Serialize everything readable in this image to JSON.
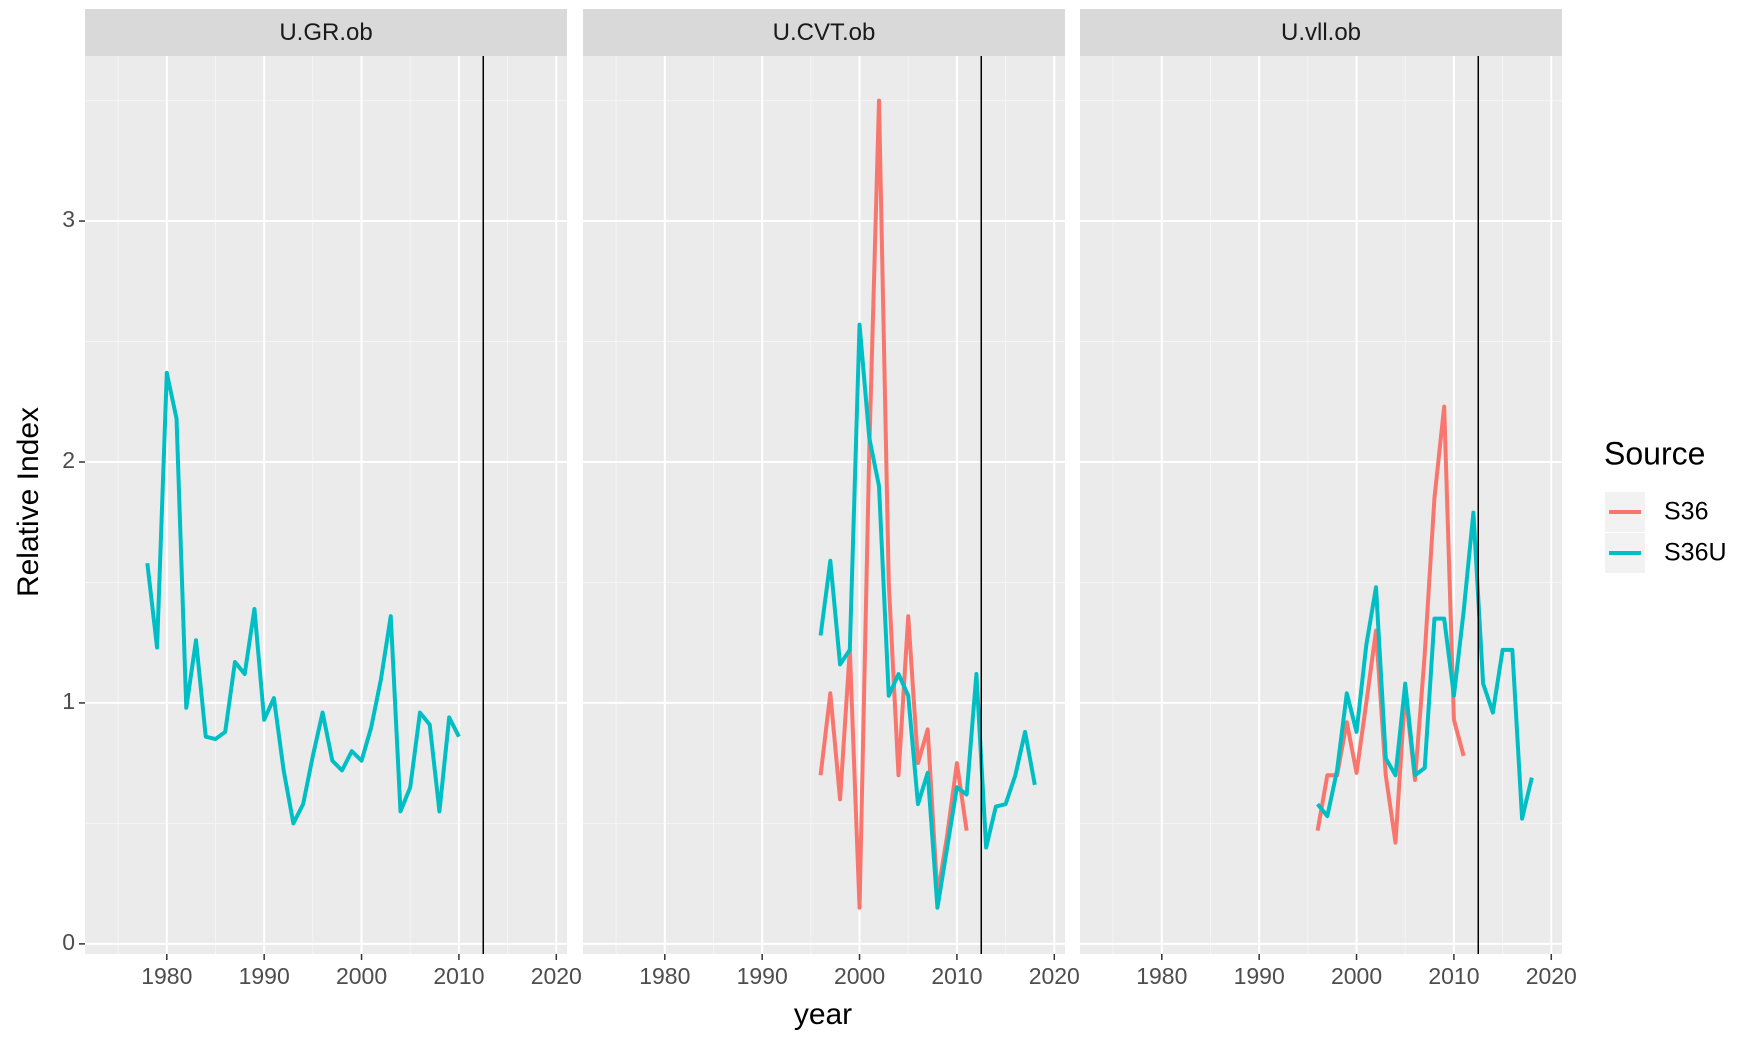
{
  "x_label": "year",
  "y_label": "Relative Index",
  "legend_title": "Source",
  "grid": true,
  "chart_data": [
    {
      "type": "line",
      "title": "U.GR.ob",
      "xlim": [
        1971.6,
        2021.1
      ],
      "ylim": [
        -0.042,
        3.685
      ],
      "xticks": [
        1980,
        1990,
        2000,
        2010,
        2020
      ],
      "yticks": [
        0,
        1,
        2,
        3
      ],
      "vline": 2012.5,
      "series": [
        {
          "name": "S36U",
          "color": "#00BFC4",
          "x": [
            1978,
            1979,
            1980,
            1981,
            1982,
            1983,
            1984,
            1985,
            1986,
            1987,
            1988,
            1989,
            1990,
            1991,
            1992,
            1993,
            1994,
            1995,
            1996,
            1997,
            1998,
            1999,
            2000,
            2001,
            2002,
            2003,
            2004,
            2005,
            2006,
            2007,
            2008,
            2009,
            2010
          ],
          "values": [
            1.58,
            1.23,
            2.37,
            2.18,
            0.98,
            1.26,
            0.86,
            0.85,
            0.88,
            1.17,
            1.12,
            1.39,
            0.93,
            1.02,
            0.72,
            0.5,
            0.58,
            0.78,
            0.96,
            0.76,
            0.72,
            0.8,
            0.76,
            0.9,
            1.1,
            1.36,
            0.55,
            0.65,
            0.96,
            0.91,
            0.55,
            0.94,
            0.86
          ]
        }
      ]
    },
    {
      "type": "line",
      "title": "U.CVT.ob",
      "xlim": [
        1971.6,
        2021.1
      ],
      "ylim": [
        -0.042,
        3.685
      ],
      "xticks": [
        1980,
        1990,
        2000,
        2010,
        2020
      ],
      "yticks": [
        0,
        1,
        2,
        3
      ],
      "vline": 2012.5,
      "series": [
        {
          "name": "S36",
          "color": "#F8766D",
          "x": [
            1996,
            1997,
            1998,
            1999,
            2000,
            2001,
            2002,
            2003,
            2004,
            2005,
            2006,
            2007,
            2008,
            2009,
            2010,
            2011
          ],
          "values": [
            0.7,
            1.04,
            0.6,
            1.22,
            0.15,
            2.05,
            3.5,
            1.5,
            0.7,
            1.36,
            0.75,
            0.89,
            0.2,
            0.45,
            0.75,
            0.47
          ]
        },
        {
          "name": "S36U",
          "color": "#00BFC4",
          "x": [
            1996,
            1997,
            1998,
            1999,
            2000,
            2001,
            2002,
            2003,
            2004,
            2005,
            2006,
            2007,
            2008,
            2009,
            2010,
            2011,
            2012,
            2013,
            2014,
            2015,
            2016,
            2017,
            2018
          ],
          "values": [
            1.28,
            1.59,
            1.16,
            1.22,
            2.57,
            2.1,
            1.9,
            1.03,
            1.12,
            1.03,
            0.58,
            0.71,
            0.15,
            0.4,
            0.65,
            0.62,
            1.12,
            0.4,
            0.57,
            0.58,
            0.7,
            0.88,
            0.66
          ]
        }
      ]
    },
    {
      "type": "line",
      "title": "U.vll.ob",
      "xlim": [
        1971.6,
        2021.1
      ],
      "ylim": [
        -0.042,
        3.685
      ],
      "xticks": [
        1980,
        1990,
        2000,
        2010,
        2020
      ],
      "yticks": [
        0,
        1,
        2,
        3
      ],
      "vline": 2012.5,
      "series": [
        {
          "name": "S36",
          "color": "#F8766D",
          "x": [
            1996,
            1997,
            1998,
            1999,
            2000,
            2001,
            2002,
            2003,
            2004,
            2005,
            2006,
            2007,
            2008,
            2009,
            2010,
            2011
          ],
          "values": [
            0.47,
            0.7,
            0.7,
            0.92,
            0.71,
            1.0,
            1.3,
            0.7,
            0.42,
            1.05,
            0.68,
            1.2,
            1.85,
            2.23,
            0.93,
            0.78
          ]
        },
        {
          "name": "S36U",
          "color": "#00BFC4",
          "x": [
            1996,
            1997,
            1998,
            1999,
            2000,
            2001,
            2002,
            2003,
            2004,
            2005,
            2006,
            2007,
            2008,
            2009,
            2010,
            2011,
            2012,
            2013,
            2014,
            2015,
            2016,
            2017,
            2018
          ],
          "values": [
            0.58,
            0.53,
            0.72,
            1.04,
            0.88,
            1.24,
            1.48,
            0.77,
            0.7,
            1.08,
            0.7,
            0.73,
            1.35,
            1.35,
            1.03,
            1.38,
            1.79,
            1.08,
            0.96,
            1.22,
            1.22,
            0.52,
            0.69
          ]
        }
      ]
    }
  ]
}
